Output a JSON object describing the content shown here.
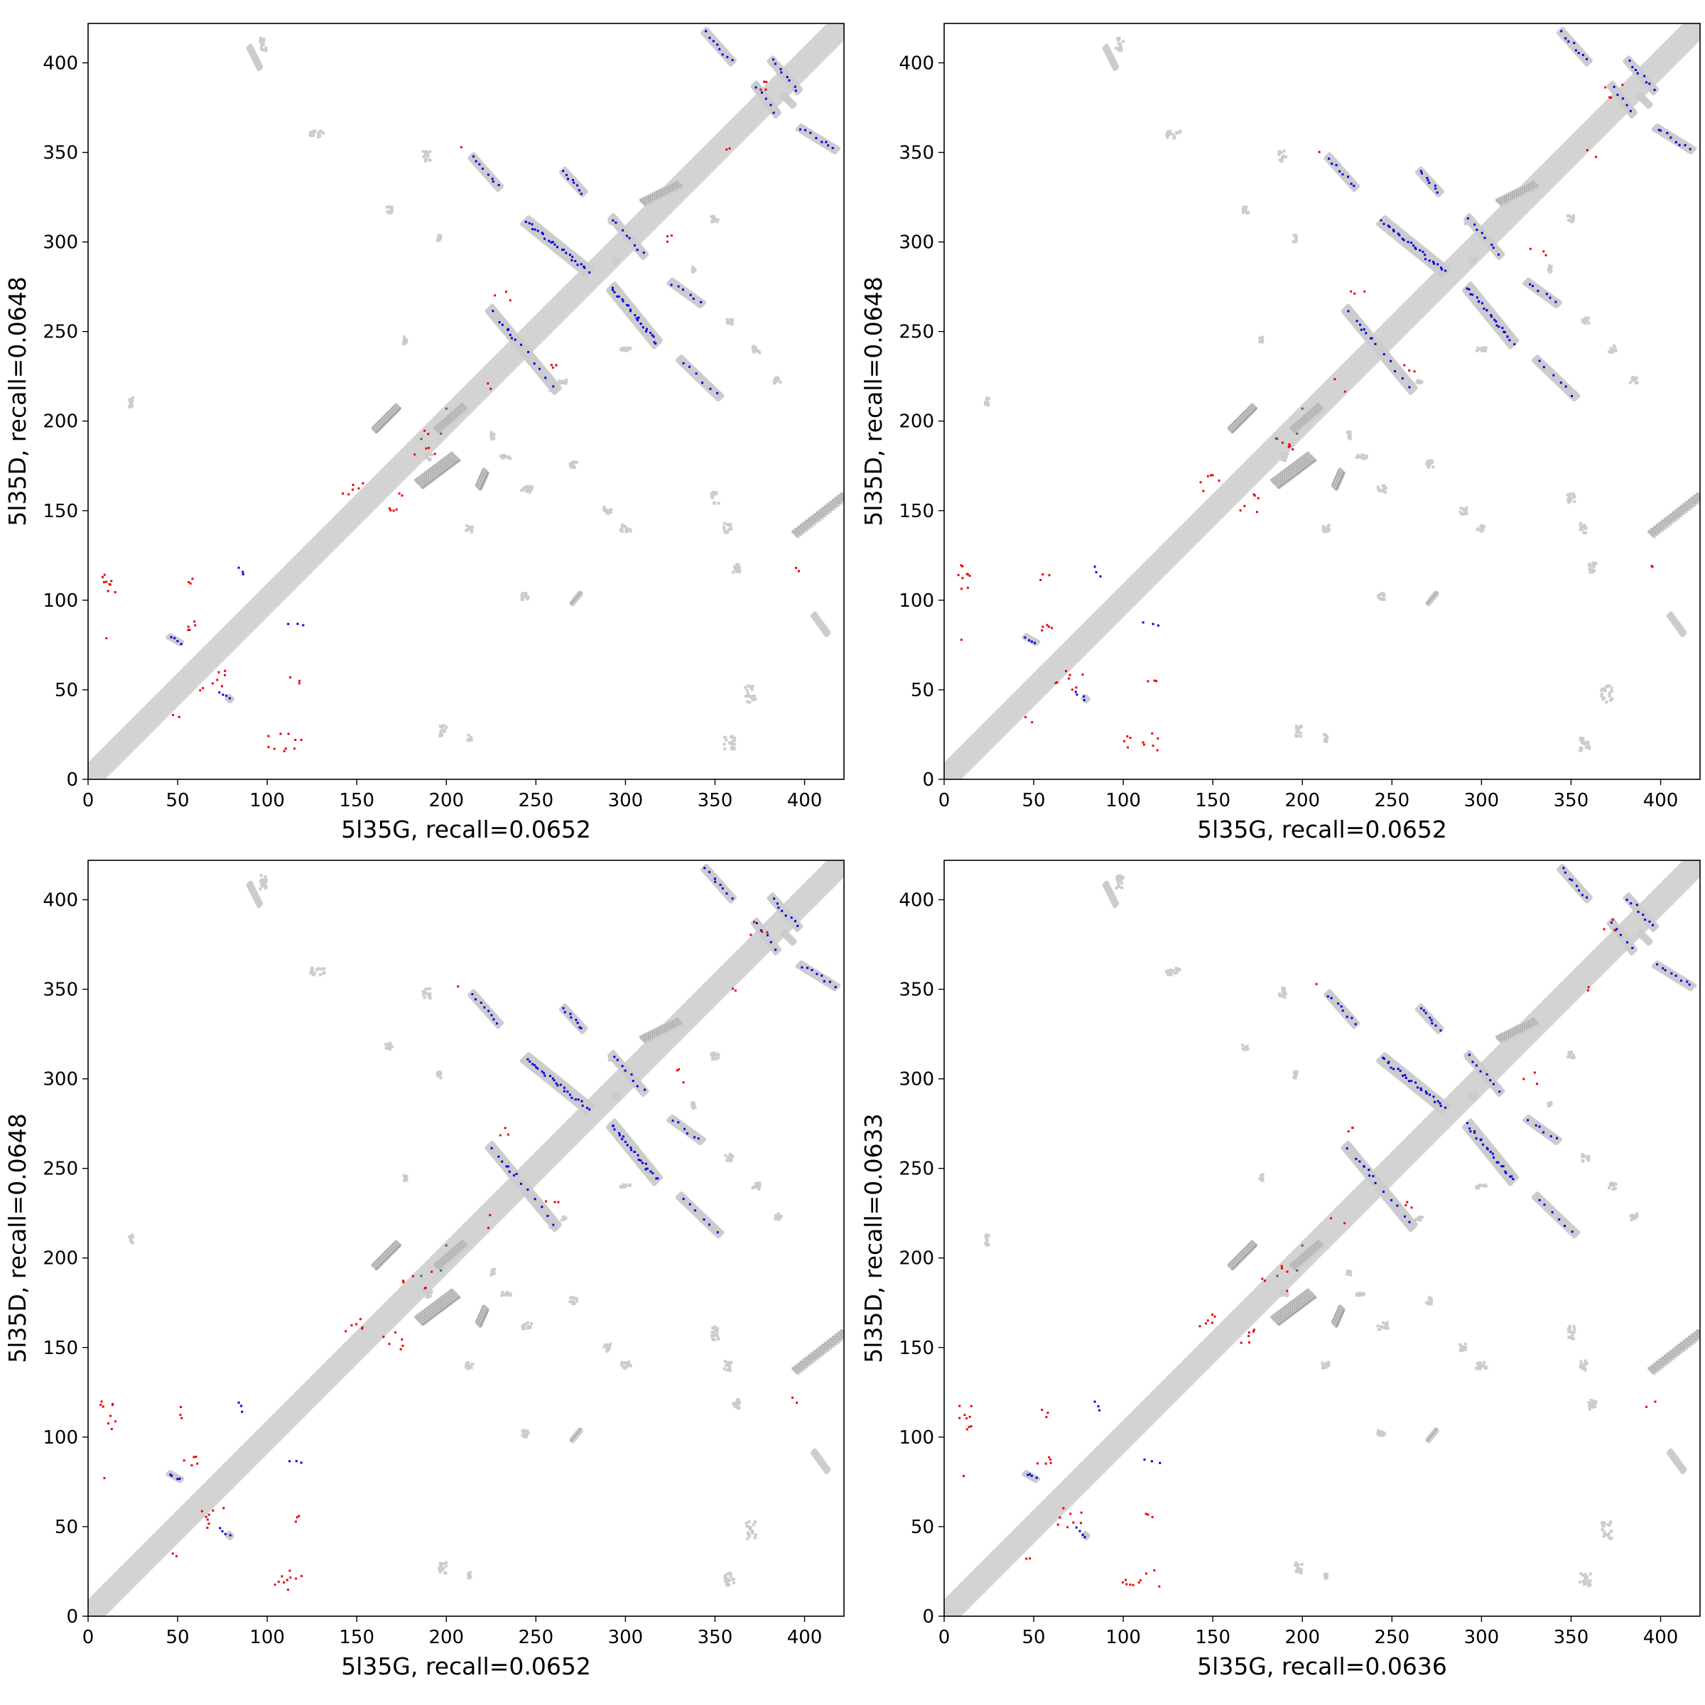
{
  "figure": {
    "background": "#ffffff",
    "colors": {
      "diagonal": "#d3d3d3",
      "native_contact": "#cccccc",
      "shared_contact": "#a8a8a8",
      "true_positive": "#0000ee",
      "false_positive": "#ee0000",
      "green_marker": "#2e7d32",
      "axes": "#000000"
    }
  },
  "chart_data": [
    {
      "type": "scatter",
      "title": "",
      "xlabel": "5l35G, recall=0.0652",
      "ylabel": "5l35D, recall=0.0648",
      "xlim": [
        0,
        422
      ],
      "ylim": [
        0,
        422
      ],
      "xticks": [
        0,
        50,
        100,
        150,
        200,
        250,
        300,
        350,
        400
      ],
      "yticks": [
        0,
        50,
        100,
        150,
        200,
        250,
        300,
        350,
        400
      ],
      "grid": false,
      "legend": "none"
    },
    {
      "type": "scatter",
      "title": "",
      "xlabel": "5l35G, recall=0.0652",
      "ylabel": "5l35D, recall=0.0648",
      "xlim": [
        0,
        422
      ],
      "ylim": [
        0,
        422
      ],
      "xticks": [
        0,
        50,
        100,
        150,
        200,
        250,
        300,
        350,
        400
      ],
      "yticks": [
        0,
        50,
        100,
        150,
        200,
        250,
        300,
        350,
        400
      ],
      "grid": false,
      "legend": "none"
    },
    {
      "type": "scatter",
      "title": "",
      "xlabel": "5l35G, recall=0.0652",
      "ylabel": "5l35D, recall=0.0648",
      "xlim": [
        0,
        422
      ],
      "ylim": [
        0,
        422
      ],
      "xticks": [
        0,
        50,
        100,
        150,
        200,
        250,
        300,
        350,
        400
      ],
      "yticks": [
        0,
        50,
        100,
        150,
        200,
        250,
        300,
        350,
        400
      ],
      "grid": false,
      "legend": "none"
    },
    {
      "type": "scatter",
      "title": "",
      "xlabel": "5l35G, recall=0.0636",
      "ylabel": "5l35D, recall=0.0633",
      "xlim": [
        0,
        422
      ],
      "ylim": [
        0,
        422
      ],
      "xticks": [
        0,
        50,
        100,
        150,
        200,
        250,
        300,
        350,
        400
      ],
      "yticks": [
        0,
        50,
        100,
        150,
        200,
        250,
        300,
        350,
        400
      ],
      "grid": false,
      "legend": "none"
    }
  ]
}
